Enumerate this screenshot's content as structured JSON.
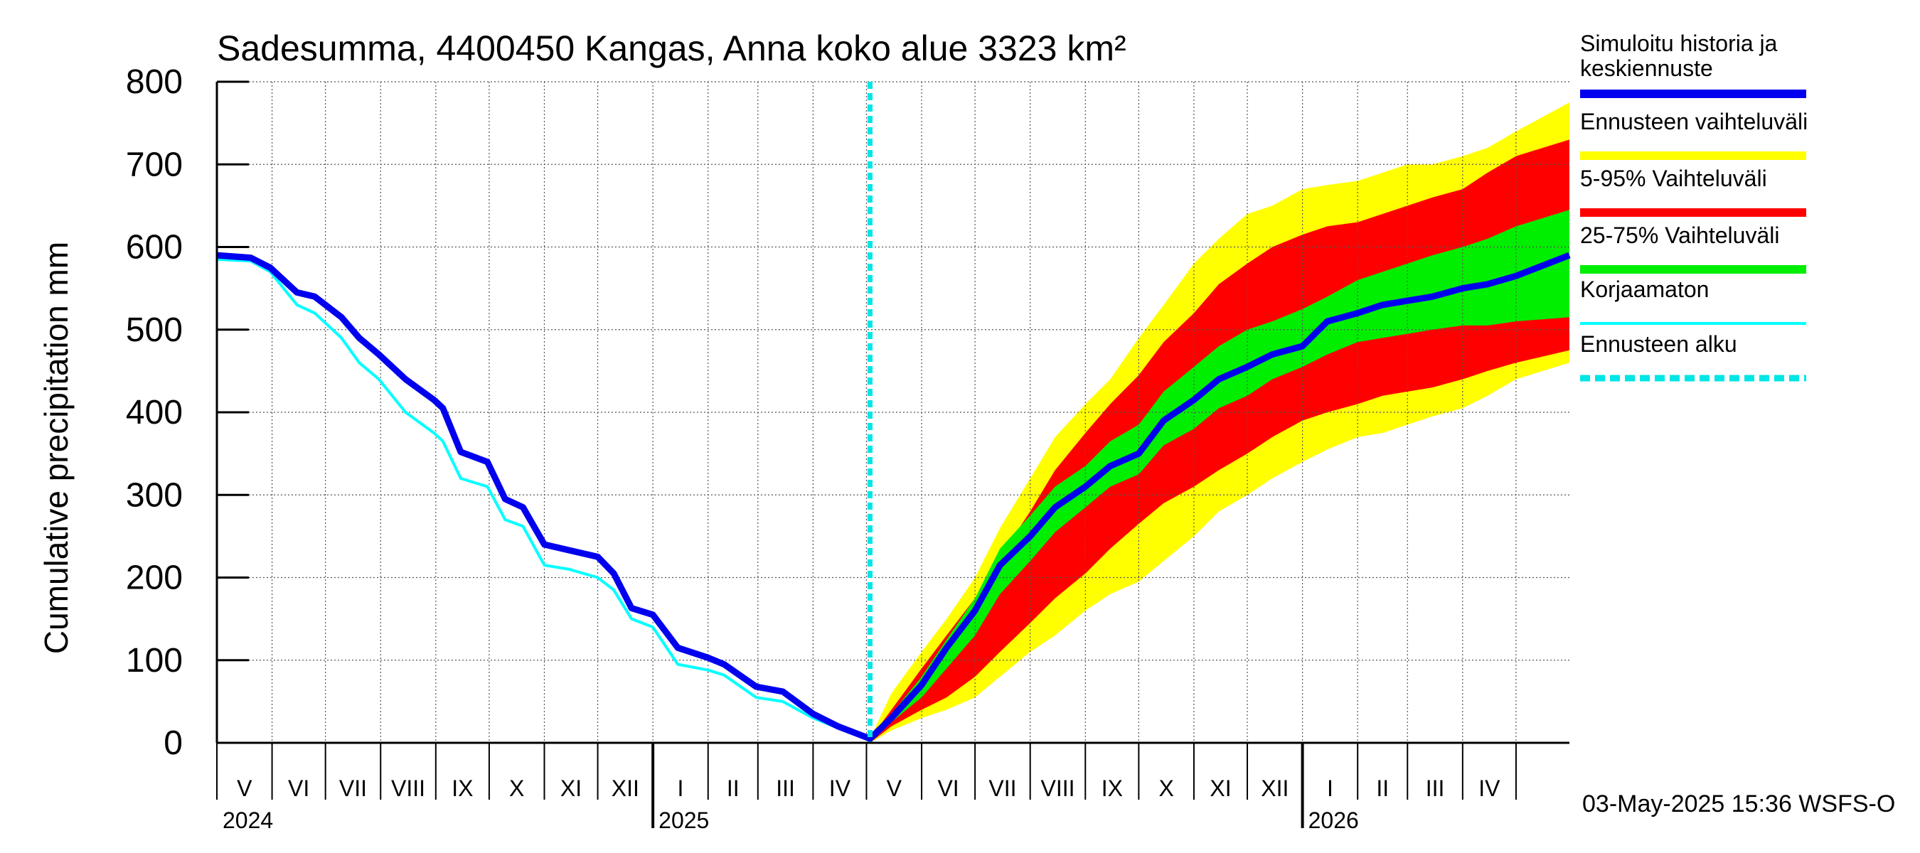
{
  "chart_data": {
    "type": "area",
    "title": "Sadesumma, 4400450 Kangas, Anna koko alue 3323 km²",
    "ylabel": "Cumulative precipitation   mm",
    "ylim": [
      0,
      800
    ],
    "yticks": [
      "0",
      "100",
      "200",
      "300",
      "400",
      "500",
      "600",
      "700",
      "800"
    ],
    "xlim": [
      "2024-05-01",
      "2026-05-31"
    ],
    "month_labels": [
      "V",
      "VI",
      "VII",
      "VIII",
      "IX",
      "X",
      "XI",
      "XII",
      "I",
      "II",
      "III",
      "IV",
      "V",
      "VI",
      "VII",
      "VIII",
      "IX",
      "X",
      "XI",
      "XII",
      "I",
      "II",
      "III",
      "IV"
    ],
    "year_labels": [
      {
        "label": "2024",
        "date": "2024-05-01"
      },
      {
        "label": "2025",
        "date": "2025-01-01"
      },
      {
        "label": "2026",
        "date": "2026-01-01"
      }
    ],
    "forecast_start": "2025-05-03",
    "footer": "03-May-2025 15:36 WSFS-O",
    "legend": [
      {
        "label": "Simuloitu historia ja keskiennuste",
        "color": "#0000ee",
        "style": "thick"
      },
      {
        "label": "Ennusteen vaihteluväli",
        "color": "#ffff00",
        "style": "thick"
      },
      {
        "label": "5-95% Vaihteluväli",
        "color": "#ff0000",
        "style": "thick"
      },
      {
        "label": "25-75% Vaihteluväli",
        "color": "#00ee00",
        "style": "thick"
      },
      {
        "label": "Korjaamaton",
        "color": "#00ffff",
        "style": "thin"
      },
      {
        "label": "Ennusteen alku",
        "color": "#00e5e5",
        "style": "dashed"
      }
    ],
    "legend_placement": "right",
    "grid": true,
    "series": [
      {
        "name": "Simuloitu historia ja keskiennuste",
        "color": "#0000ee",
        "x": [
          "2024-05-01",
          "2024-05-20",
          "2024-05-31",
          "2024-06-15",
          "2024-06-25",
          "2024-07-10",
          "2024-07-20",
          "2024-07-31",
          "2024-08-15",
          "2024-08-31",
          "2024-09-05",
          "2024-09-15",
          "2024-09-30",
          "2024-10-10",
          "2024-10-20",
          "2024-11-01",
          "2024-11-15",
          "2024-12-01",
          "2024-12-10",
          "2024-12-20",
          "2025-01-01",
          "2025-01-15",
          "2025-02-01",
          "2025-02-10",
          "2025-02-28",
          "2025-03-15",
          "2025-04-01",
          "2025-04-15",
          "2025-05-03",
          "2025-05-15",
          "2025-06-01",
          "2025-06-15",
          "2025-07-01",
          "2025-07-15",
          "2025-08-01",
          "2025-08-15",
          "2025-09-01",
          "2025-09-15",
          "2025-10-01",
          "2025-10-15",
          "2025-11-01",
          "2025-11-15",
          "2025-12-01",
          "2025-12-15",
          "2026-01-01",
          "2026-01-15",
          "2026-02-01",
          "2026-02-15",
          "2026-03-01",
          "2026-03-15",
          "2026-04-01",
          "2026-04-15",
          "2026-05-01",
          "2026-05-31"
        ],
        "y": [
          590,
          587,
          575,
          545,
          540,
          515,
          490,
          470,
          440,
          415,
          405,
          352,
          340,
          295,
          285,
          240,
          233,
          225,
          205,
          163,
          155,
          115,
          103,
          95,
          68,
          62,
          35,
          20,
          5,
          30,
          70,
          115,
          160,
          215,
          250,
          285,
          310,
          335,
          350,
          390,
          415,
          440,
          455,
          470,
          480,
          510,
          520,
          530,
          535,
          540,
          550,
          555,
          565,
          590
        ]
      },
      {
        "name": "Korjaamaton",
        "color": "#00ffff",
        "x": [
          "2024-05-01",
          "2024-05-20",
          "2024-05-31",
          "2024-06-15",
          "2024-06-25",
          "2024-07-10",
          "2024-07-20",
          "2024-07-31",
          "2024-08-15",
          "2024-08-31",
          "2024-09-05",
          "2024-09-15",
          "2024-09-30",
          "2024-10-10",
          "2024-10-20",
          "2024-11-01",
          "2024-11-15",
          "2024-12-01",
          "2024-12-10",
          "2024-12-20",
          "2025-01-01",
          "2025-01-15",
          "2025-02-01",
          "2025-02-10",
          "2025-02-28",
          "2025-03-15",
          "2025-04-01",
          "2025-04-15",
          "2025-05-03"
        ],
        "y": [
          585,
          583,
          570,
          530,
          520,
          490,
          460,
          440,
          400,
          375,
          365,
          320,
          310,
          270,
          262,
          215,
          210,
          200,
          185,
          150,
          140,
          95,
          88,
          82,
          55,
          50,
          30,
          18,
          5
        ]
      },
      {
        "name": "Ennusteen vaihteluväli",
        "color": "#ffff00",
        "x": [
          "2025-05-03",
          "2025-05-15",
          "2025-06-01",
          "2025-06-15",
          "2025-07-01",
          "2025-07-15",
          "2025-08-01",
          "2025-08-15",
          "2025-09-01",
          "2025-09-15",
          "2025-10-01",
          "2025-10-15",
          "2025-11-01",
          "2025-11-15",
          "2025-12-01",
          "2025-12-15",
          "2026-01-01",
          "2026-01-15",
          "2026-02-01",
          "2026-02-15",
          "2026-03-01",
          "2026-03-15",
          "2026-04-01",
          "2026-04-15",
          "2026-05-01",
          "2026-05-31"
        ],
        "upper": [
          5,
          60,
          110,
          150,
          200,
          260,
          320,
          370,
          410,
          440,
          490,
          530,
          580,
          610,
          640,
          650,
          670,
          675,
          680,
          690,
          700,
          700,
          710,
          720,
          740,
          775
        ],
        "lower": [
          0,
          15,
          30,
          40,
          55,
          80,
          110,
          130,
          160,
          180,
          195,
          220,
          250,
          280,
          300,
          320,
          340,
          355,
          370,
          375,
          385,
          395,
          405,
          420,
          440,
          460
        ]
      },
      {
        "name": "5-95% Vaihteluväli",
        "color": "#ff0000",
        "x": [
          "2025-05-03",
          "2025-05-15",
          "2025-06-01",
          "2025-06-15",
          "2025-07-01",
          "2025-07-15",
          "2025-08-01",
          "2025-08-15",
          "2025-09-01",
          "2025-09-15",
          "2025-10-01",
          "2025-10-15",
          "2025-11-01",
          "2025-11-15",
          "2025-12-01",
          "2025-12-15",
          "2026-01-01",
          "2026-01-15",
          "2026-02-01",
          "2026-02-15",
          "2026-03-01",
          "2026-03-15",
          "2026-04-01",
          "2026-04-15",
          "2026-05-01",
          "2026-05-31"
        ],
        "upper": [
          5,
          40,
          90,
          130,
          175,
          225,
          280,
          330,
          375,
          410,
          445,
          485,
          520,
          555,
          580,
          600,
          615,
          625,
          630,
          640,
          650,
          660,
          670,
          690,
          710,
          730
        ],
        "lower": [
          0,
          20,
          40,
          55,
          80,
          110,
          145,
          175,
          205,
          235,
          265,
          290,
          310,
          330,
          350,
          370,
          390,
          400,
          410,
          420,
          425,
          430,
          440,
          450,
          460,
          475
        ]
      },
      {
        "name": "25-75% Vaihteluväli",
        "color": "#00ee00",
        "x": [
          "2025-05-03",
          "2025-05-15",
          "2025-06-01",
          "2025-06-15",
          "2025-07-01",
          "2025-07-15",
          "2025-08-01",
          "2025-08-15",
          "2025-09-01",
          "2025-09-15",
          "2025-10-01",
          "2025-10-15",
          "2025-11-01",
          "2025-11-15",
          "2025-12-01",
          "2025-12-15",
          "2026-01-01",
          "2026-01-15",
          "2026-02-01",
          "2026-02-15",
          "2026-03-01",
          "2026-03-15",
          "2026-04-01",
          "2026-04-15",
          "2026-05-01",
          "2026-05-31"
        ],
        "upper": [
          5,
          35,
          80,
          125,
          175,
          235,
          275,
          310,
          335,
          365,
          385,
          425,
          455,
          480,
          500,
          510,
          525,
          540,
          560,
          570,
          580,
          590,
          600,
          610,
          625,
          645
        ],
        "lower": [
          0,
          25,
          55,
          90,
          130,
          180,
          220,
          255,
          285,
          310,
          325,
          360,
          380,
          405,
          420,
          440,
          455,
          470,
          485,
          490,
          495,
          500,
          505,
          505,
          510,
          515
        ]
      }
    ]
  }
}
